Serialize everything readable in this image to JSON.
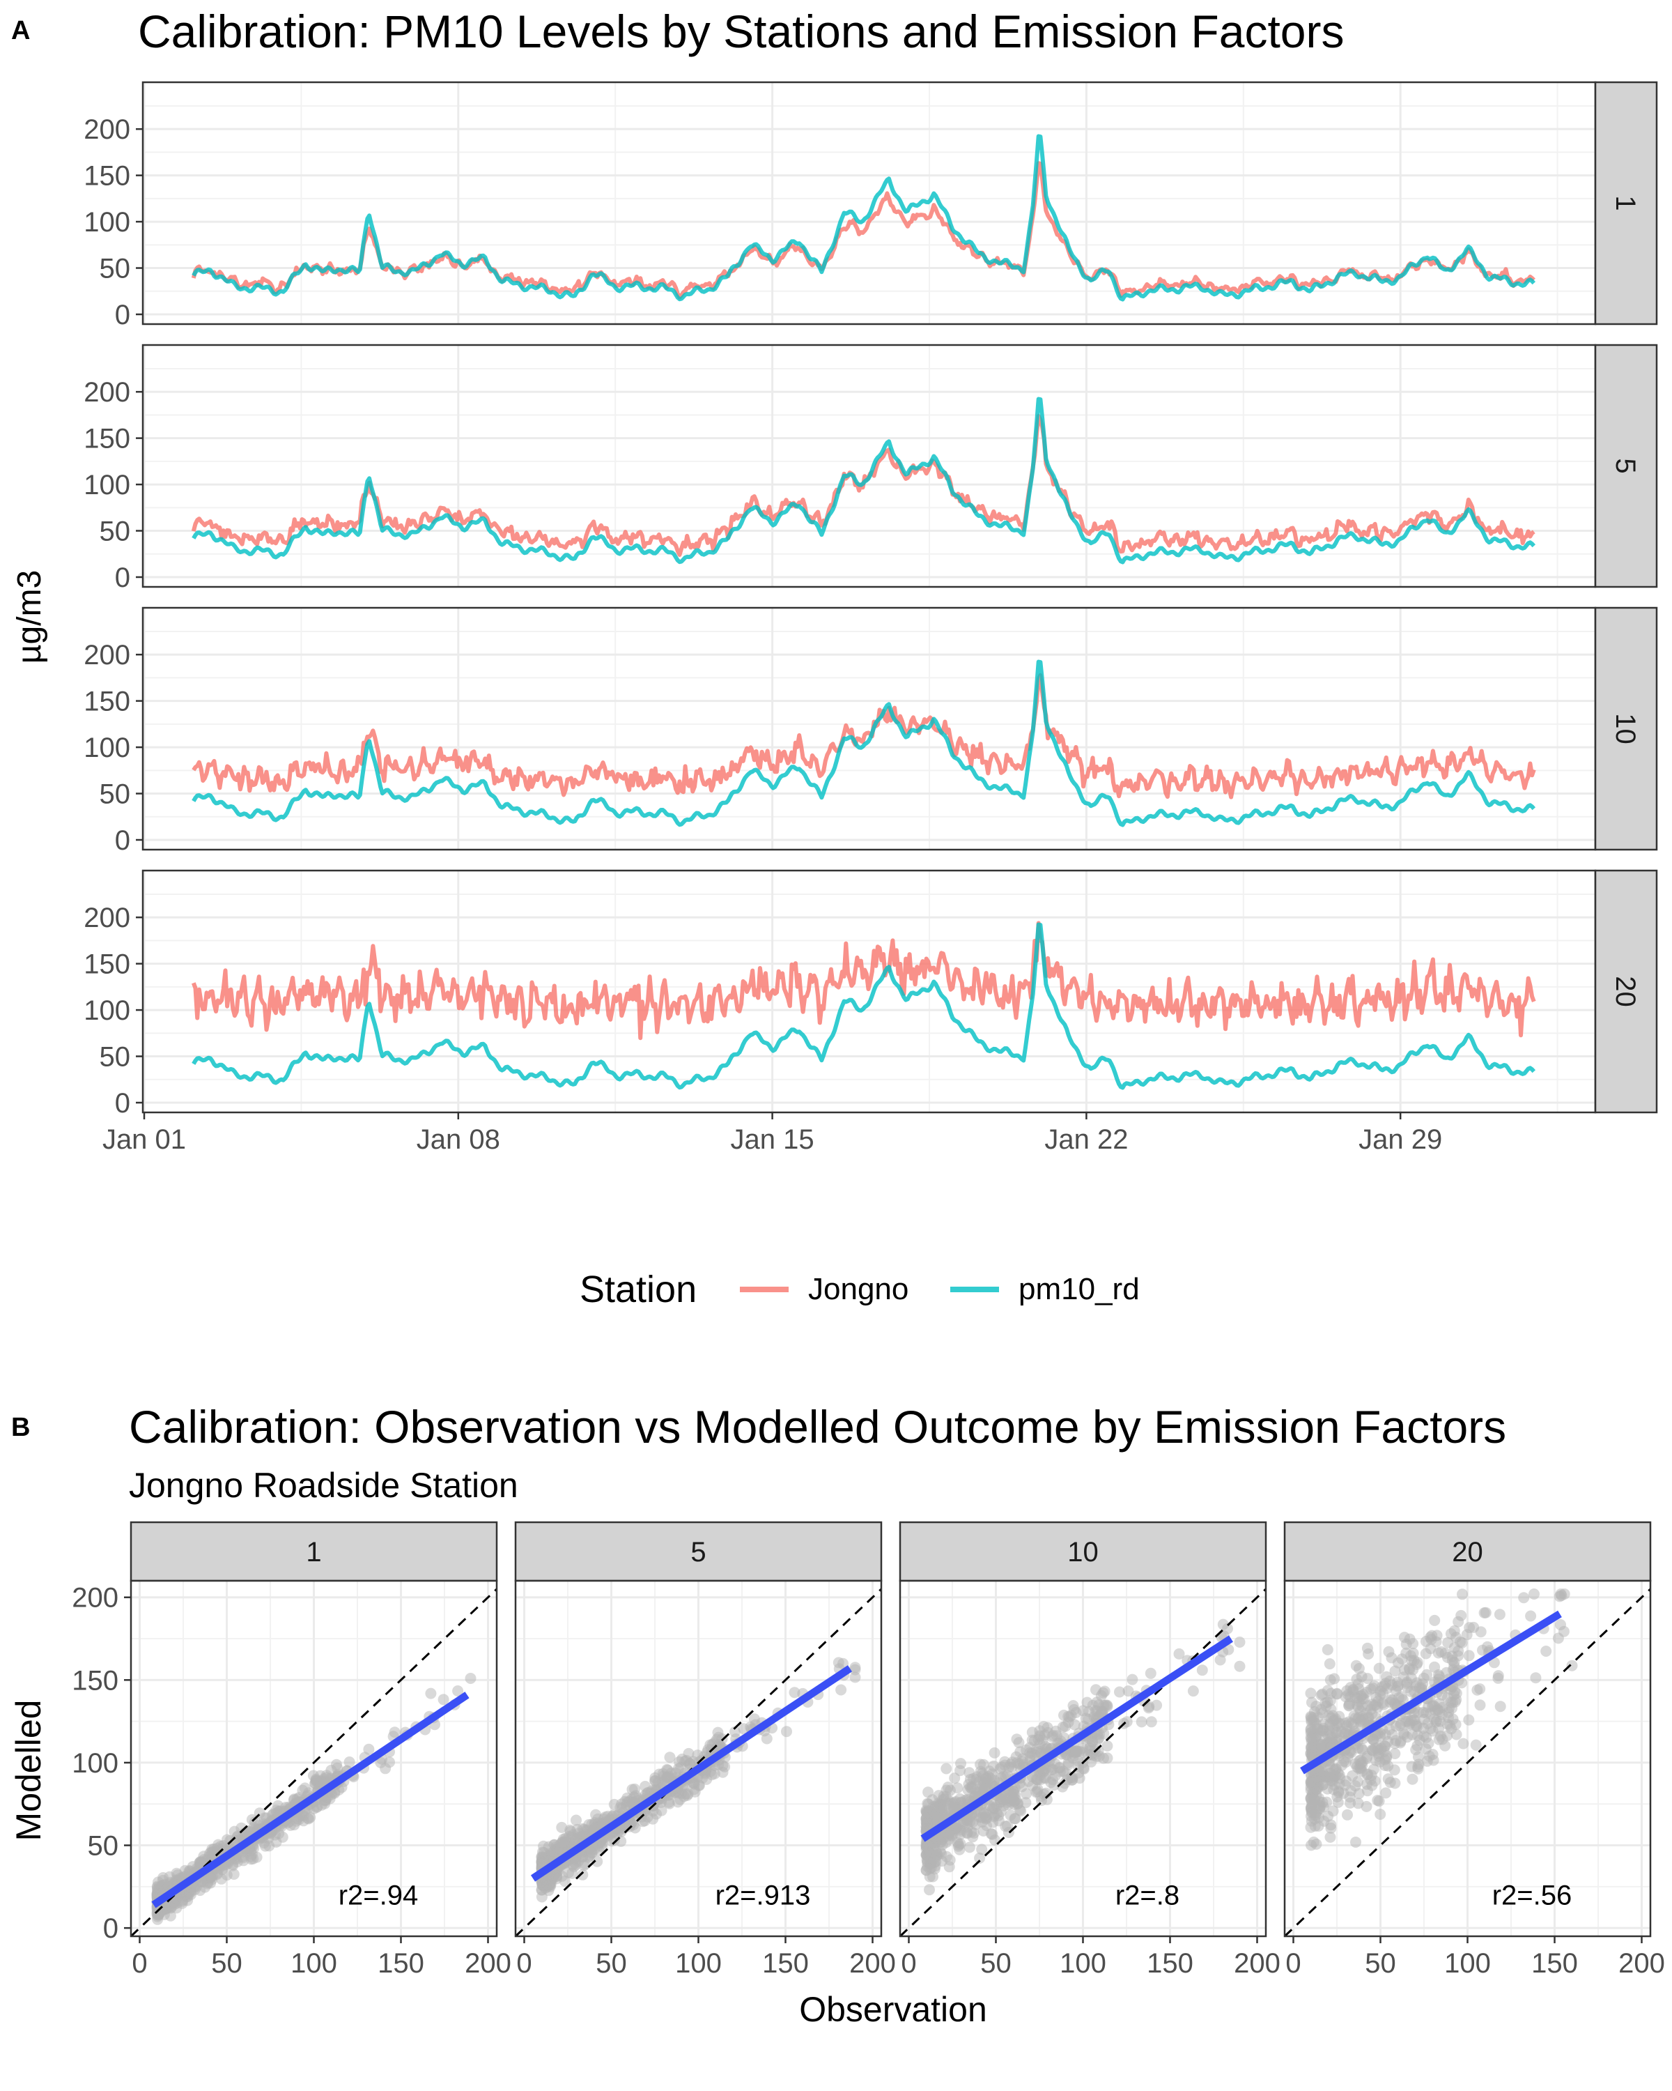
{
  "panel_letters": {
    "a": "A",
    "b": "B"
  },
  "colors": {
    "jongno": "#F8766D",
    "pm10_rd": "#00BFC4",
    "fit_line": "#3A4FF5",
    "points": "#B4B4B4",
    "strip_bg": "#D3D3D3"
  },
  "chart_data": [
    {
      "type": "line",
      "title": "Calibration: PM10 Levels by Stations and Emission Factors",
      "ylabel": "µg/m3",
      "xlabel": "",
      "x_ticks": [
        "Jan 01",
        "Jan 08",
        "Jan 15",
        "Jan 22",
        "Jan 29"
      ],
      "y_ticks": [
        0,
        50,
        100,
        150,
        200
      ],
      "ylim": [
        0,
        240
      ],
      "x_range_days": [
        1,
        32
      ],
      "grid": true,
      "legend": {
        "title": "Station",
        "position": "bottom",
        "entries": [
          "Jongno",
          "pm10_rd"
        ]
      },
      "series_names": [
        "Jongno",
        "pm10_rd"
      ],
      "facets": [
        "1",
        "5",
        "10",
        "20"
      ],
      "pm10_rd_knots": [
        [
          2.1,
          42
        ],
        [
          2.5,
          48
        ],
        [
          3.0,
          30
        ],
        [
          3.6,
          28
        ],
        [
          4.1,
          25
        ],
        [
          4.6,
          55
        ],
        [
          5.0,
          45
        ],
        [
          5.3,
          50
        ],
        [
          5.8,
          45
        ],
        [
          6.0,
          115
        ],
        [
          6.3,
          50
        ],
        [
          7.0,
          45
        ],
        [
          7.6,
          65
        ],
        [
          8.1,
          55
        ],
        [
          8.6,
          60
        ],
        [
          9.0,
          35
        ],
        [
          9.6,
          30
        ],
        [
          10.1,
          25
        ],
        [
          10.6,
          18
        ],
        [
          11.0,
          45
        ],
        [
          11.5,
          30
        ],
        [
          12.0,
          30
        ],
        [
          12.6,
          28
        ],
        [
          13.0,
          20
        ],
        [
          13.6,
          28
        ],
        [
          14.0,
          40
        ],
        [
          14.5,
          75
        ],
        [
          15.0,
          60
        ],
        [
          15.6,
          80
        ],
        [
          16.1,
          45
        ],
        [
          16.6,
          110
        ],
        [
          17.0,
          100
        ],
        [
          17.6,
          145
        ],
        [
          18.0,
          110
        ],
        [
          18.6,
          130
        ],
        [
          19.0,
          95
        ],
        [
          19.6,
          65
        ],
        [
          20.1,
          55
        ],
        [
          20.6,
          50
        ],
        [
          20.8,
          110
        ],
        [
          20.95,
          200
        ],
        [
          21.1,
          130
        ],
        [
          21.6,
          70
        ],
        [
          22.1,
          35
        ],
        [
          22.5,
          50
        ],
        [
          22.8,
          15
        ],
        [
          23.3,
          25
        ],
        [
          24.0,
          28
        ],
        [
          24.6,
          30
        ],
        [
          25.0,
          20
        ],
        [
          25.6,
          25
        ],
        [
          26.0,
          30
        ],
        [
          26.6,
          35
        ],
        [
          27.0,
          25
        ],
        [
          27.6,
          40
        ],
        [
          28.0,
          45
        ],
        [
          28.6,
          35
        ],
        [
          29.0,
          40
        ],
        [
          29.6,
          65
        ],
        [
          30.0,
          45
        ],
        [
          30.5,
          70
        ],
        [
          31.0,
          40
        ],
        [
          31.5,
          35
        ],
        [
          32.0,
          32
        ]
      ],
      "jongno_modifiers": [
        {
          "facet": "1",
          "scale": 0.8,
          "offset": 10,
          "noise": 3
        },
        {
          "facet": "5",
          "scale": 0.82,
          "offset": 18,
          "noise": 5
        },
        {
          "facet": "10",
          "scale": 0.62,
          "offset": 48,
          "noise": 9
        },
        {
          "facet": "20",
          "scale": 0.42,
          "offset": 95,
          "noise": 16
        }
      ]
    },
    {
      "type": "scatter",
      "title": "Calibration: Observation vs Modelled Outcome by Emission Factors",
      "subtitle": "Jongno Roadside Station",
      "xlabel": "Observation",
      "ylabel": "Modelled",
      "xlim": [
        -5,
        205
      ],
      "ylim": [
        -5,
        210
      ],
      "x_ticks": [
        0,
        50,
        100,
        150,
        200
      ],
      "y_ticks": [
        0,
        50,
        100,
        150,
        200
      ],
      "grid": true,
      "facets": [
        {
          "label": "1",
          "r2_label": "r2=.94",
          "fit": [
            [
              8,
              14
            ],
            [
              188,
              141
            ]
          ],
          "slope": 0.71,
          "intercept": 8,
          "scatter": 4,
          "max_obs": 190
        },
        {
          "label": "5",
          "r2_label": "r2=.913",
          "fit": [
            [
              5,
              30
            ],
            [
              187,
              157
            ]
          ],
          "slope": 0.7,
          "intercept": 27,
          "scatter": 5,
          "max_obs": 190
        },
        {
          "label": "10",
          "r2_label": "r2=.8",
          "fit": [
            [
              8,
              54
            ],
            [
              185,
              175
            ]
          ],
          "slope": 0.68,
          "intercept": 48,
          "scatter": 9,
          "max_obs": 190
        },
        {
          "label": "20",
          "r2_label": "r2=.56",
          "fit": [
            [
              5,
              95
            ],
            [
              153,
              190
            ]
          ],
          "slope": 0.64,
          "intercept": 92,
          "scatter": 17,
          "max_obs": 160
        }
      ],
      "reference_line": "y = x (dashed)"
    }
  ]
}
